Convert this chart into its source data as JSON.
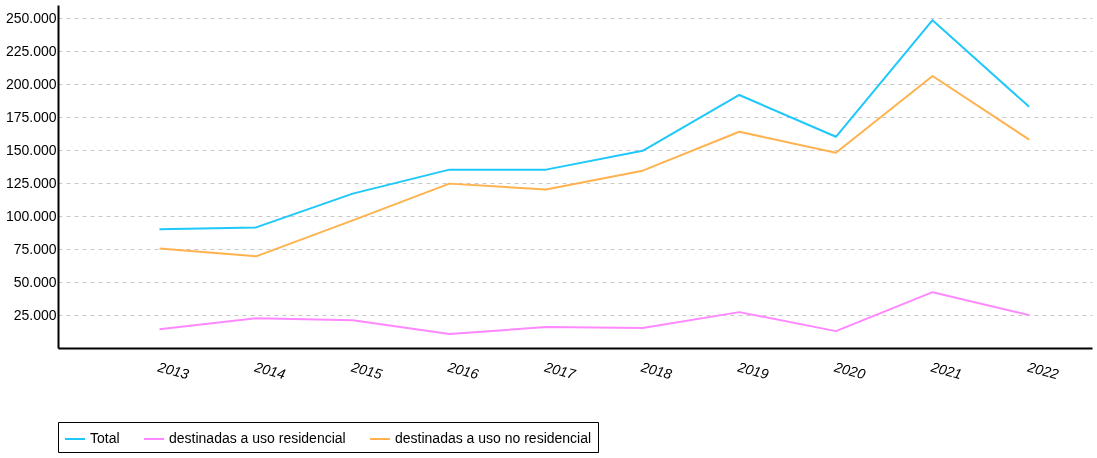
{
  "chart_data": {
    "type": "line",
    "categories": [
      "2013",
      "2014",
      "2015",
      "2016",
      "2017",
      "2018",
      "2019",
      "2020",
      "2021",
      "2022"
    ],
    "series": [
      {
        "name": "Total",
        "color": "#1ec8fa",
        "values": [
          90000,
          91400,
          117000,
          135200,
          135200,
          149500,
          191800,
          160100,
          248500,
          182800
        ]
      },
      {
        "name": "destinadas a uso residencial",
        "color": "#ff88ff",
        "values": [
          14300,
          22600,
          21100,
          10600,
          15900,
          15100,
          27200,
          12800,
          42300,
          24900
        ]
      },
      {
        "name": "destinadas a uso no residencial",
        "color": "#ffb24f",
        "values": [
          75500,
          69500,
          96700,
          124600,
          120100,
          134400,
          163900,
          148000,
          206200,
          157900
        ]
      }
    ],
    "ylim": [
      0,
      260000
    ],
    "yticks": [
      {
        "value": 25000,
        "label": "25.000"
      },
      {
        "value": 50000,
        "label": "50.000"
      },
      {
        "value": 75000,
        "label": "75.000"
      },
      {
        "value": 100000,
        "label": "100.000"
      },
      {
        "value": 125000,
        "label": "125.000"
      },
      {
        "value": 150000,
        "label": "150.000"
      },
      {
        "value": 175000,
        "label": "175.000"
      },
      {
        "value": 200000,
        "label": "200.000"
      },
      {
        "value": 225000,
        "label": "225.000"
      },
      {
        "value": 250000,
        "label": "250.000"
      }
    ],
    "grid": "y",
    "legend": "bottom",
    "marker": "none",
    "line_style": "solid"
  }
}
